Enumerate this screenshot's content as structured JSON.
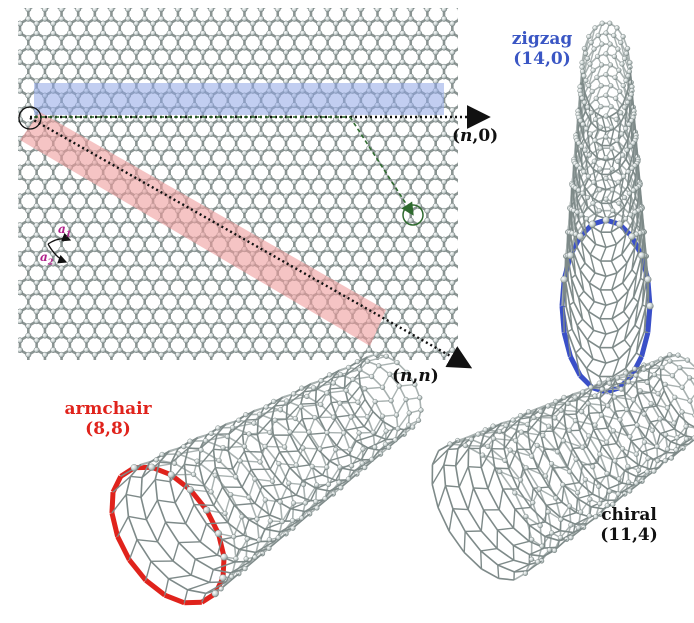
{
  "lattice": {
    "label_n0": {
      "var": "n",
      "rest": ",0)",
      "open": "("
    },
    "label_nn": {
      "open": "(",
      "var1": "n",
      "comma": ",",
      "var2": "n",
      "close": ")"
    },
    "vector_a1": "a",
    "vector_a1_sub": "1",
    "vector_a2": "a",
    "vector_a2_sub": "2"
  },
  "nanotubes": {
    "zigzag": {
      "name": "zigzag",
      "index": "(14,0)",
      "color": "#3a56c4"
    },
    "armchair": {
      "name": "armchair",
      "index": "(8,8)",
      "color": "#e0231c"
    },
    "chiral": {
      "name": "chiral",
      "index": "(11,4)",
      "color": "#111111"
    }
  },
  "colors": {
    "atom": "#c8d0cf",
    "bond": "#8a9492",
    "zigzag_band": "#8fa6e6",
    "armchair_band": "#ef9c9c",
    "chiral_vector": "#2f6a2f"
  }
}
